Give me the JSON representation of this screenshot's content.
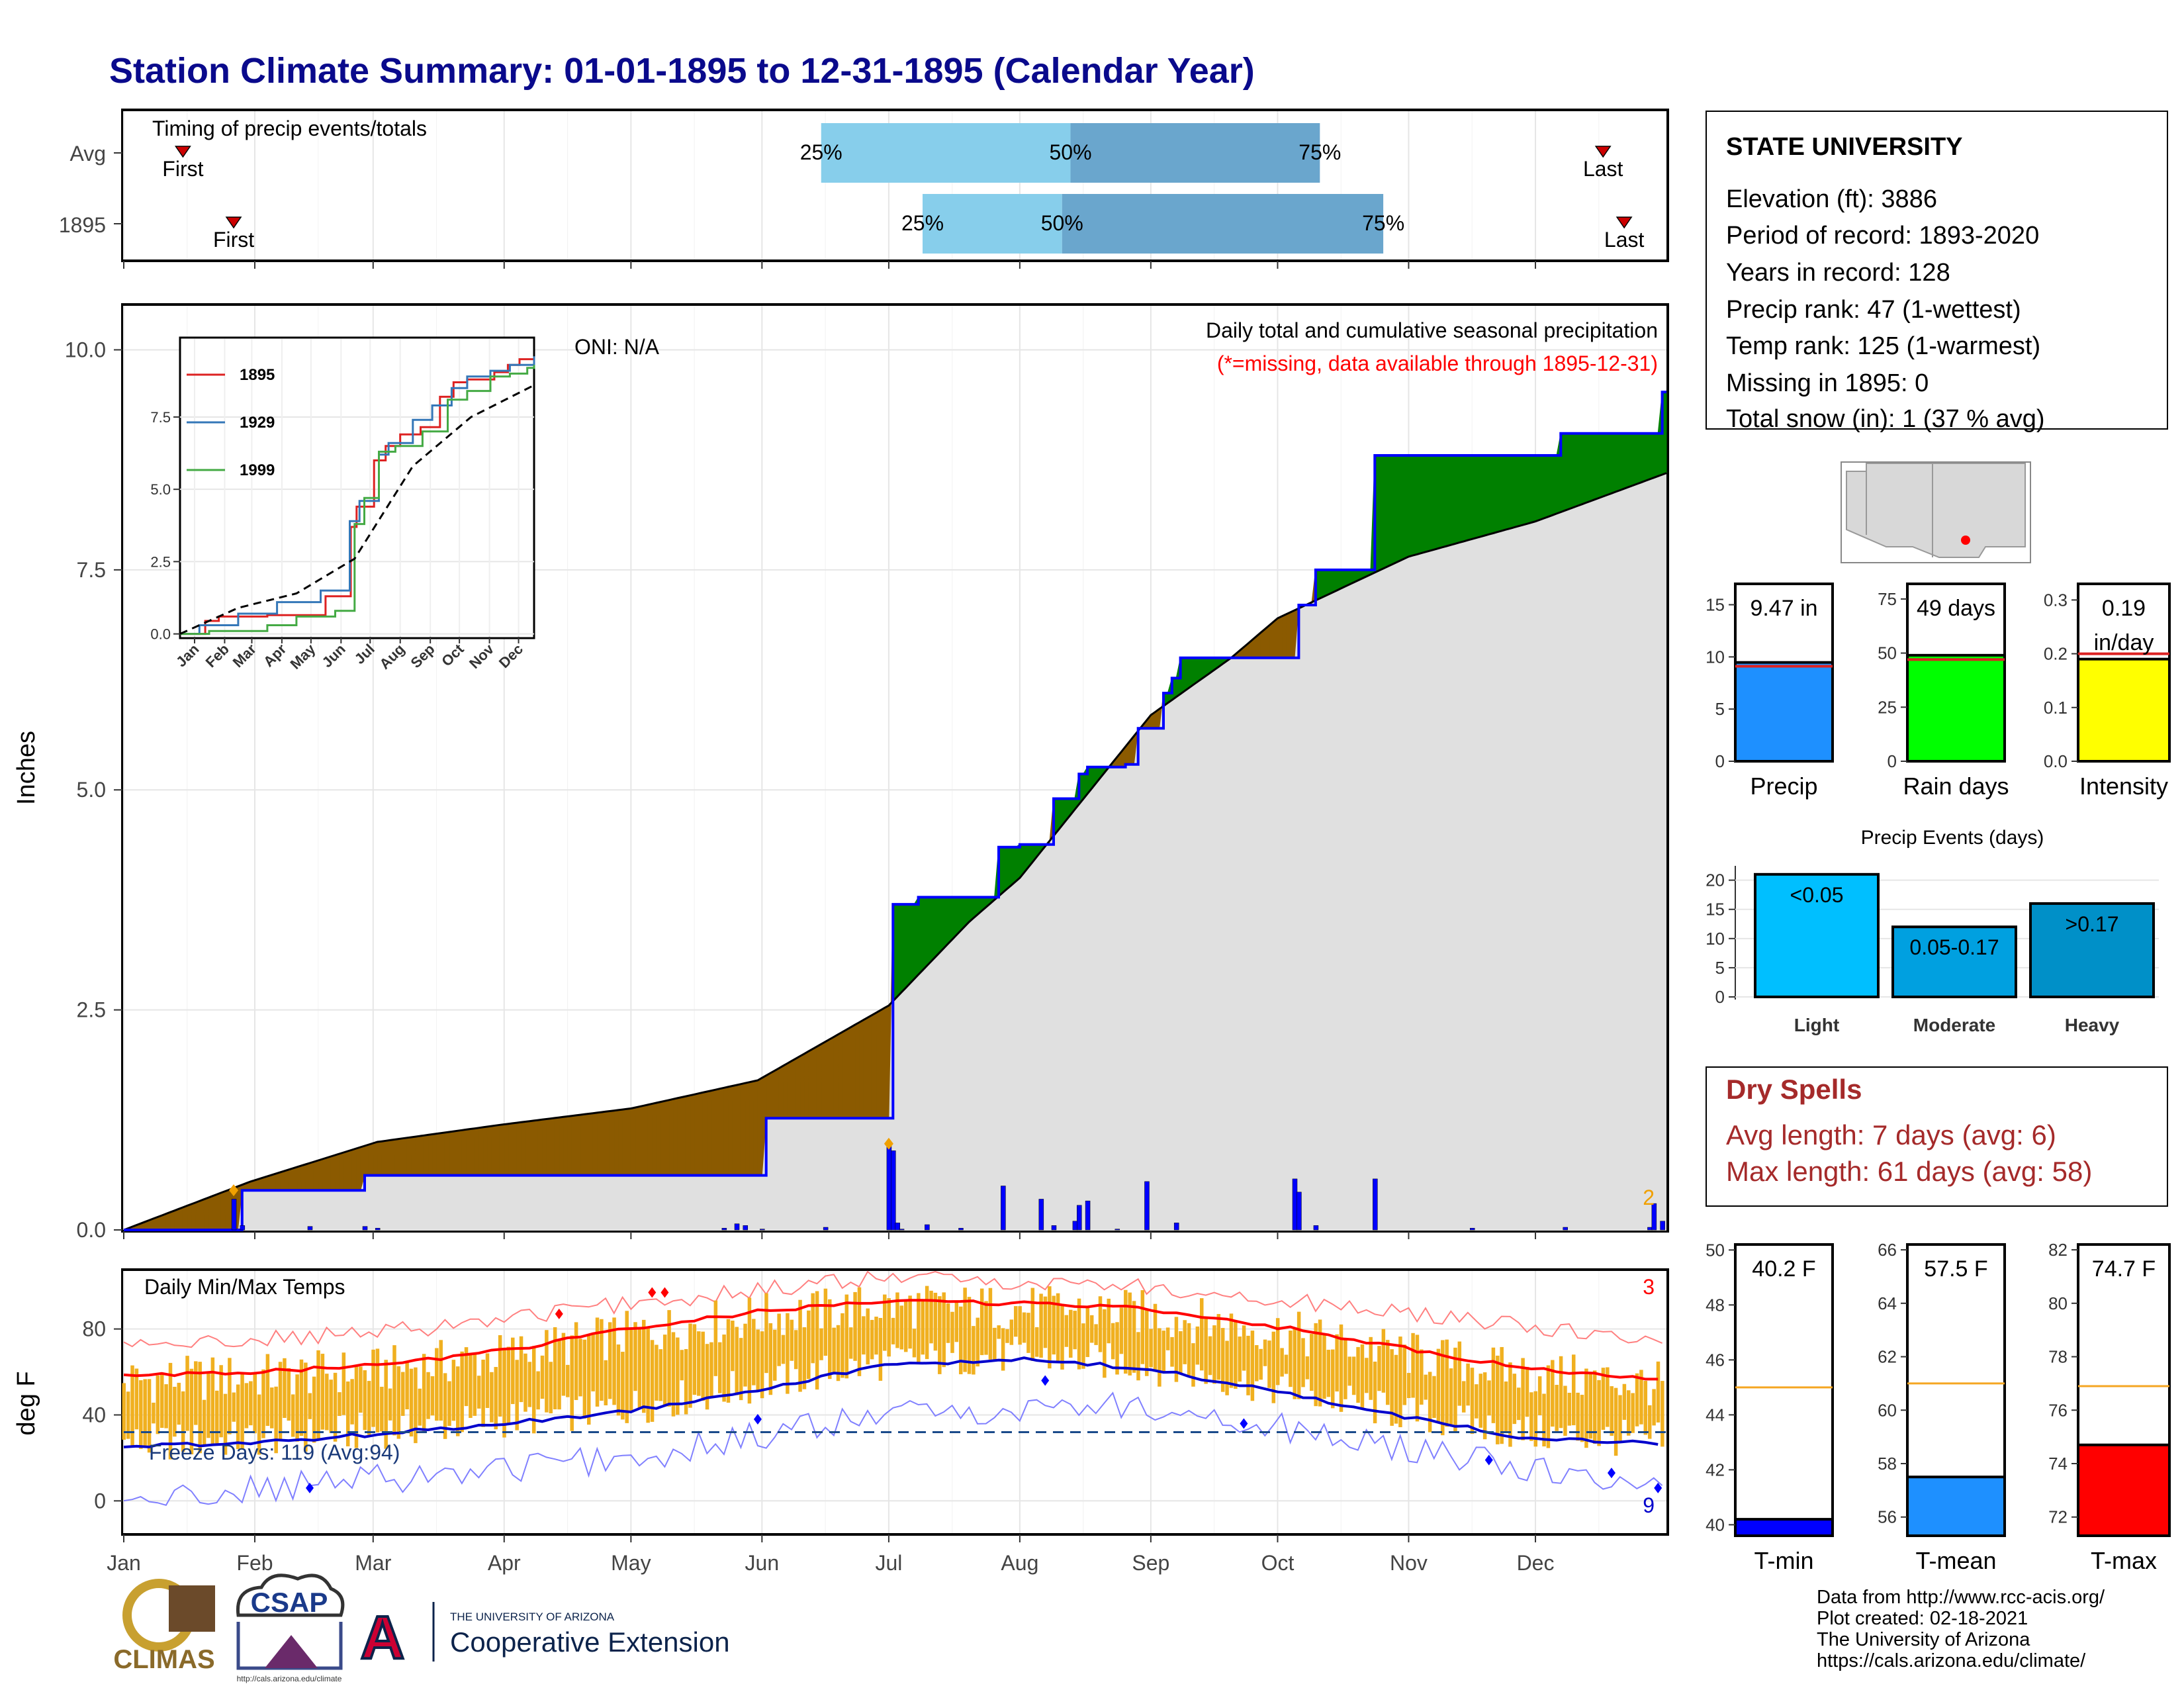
{
  "title": "Station Climate Summary: 01-01-1895 to 12-31-1895 (Calendar Year)",
  "colors": {
    "title": "#0a0a8c",
    "wet": "#008000",
    "dry": "#8B5A00",
    "cum_line": "#0000ff",
    "normal": "#e0e0e0",
    "tmax_line": "#ff0000",
    "tmin_line": "#0000cc",
    "bars": "#f0b020"
  },
  "chart_data": [
    {
      "type": "bar",
      "name": "timing",
      "title": "Timing of precip events/totals",
      "categories": [
        "Avg",
        "1895"
      ],
      "rows": [
        {
          "label": "Avg",
          "first_doy": 14,
          "last_doy": 350,
          "p25_doy": 165,
          "p50_doy": 224,
          "p75_doy": 283,
          "first_label": "First",
          "last_label": "Last",
          "p25_label": "25%",
          "p50_label": "50%",
          "p75_label": "75%"
        },
        {
          "label": "1895",
          "first_doy": 26,
          "last_doy": 355,
          "p25_doy": 189,
          "p50_doy": 222,
          "p75_doy": 298,
          "first_label": "First",
          "last_label": "Last",
          "p25_label": "25%",
          "p50_label": "50%",
          "p75_label": "75%"
        }
      ]
    },
    {
      "type": "area",
      "name": "precip",
      "title": "Daily total and cumulative seasonal precipitation",
      "subtitle": "(*=missing, data available through 1895-12-31)",
      "oni": "ONI: N/A",
      "ylabel": "Inches",
      "ylim": [
        0,
        10.5
      ],
      "yticks": [
        "0.0",
        "2.5",
        "5.0",
        "7.5",
        "10.0"
      ],
      "xticks": [
        "Jan",
        "Feb",
        "Mar",
        "Apr",
        "May",
        "Jun",
        "Jul",
        "Aug",
        "Sep",
        "Oct",
        "Nov",
        "Dec"
      ],
      "corner_count": "2",
      "normal_cumulative": {
        "doy": [
          0,
          30,
          60,
          90,
          120,
          150,
          181,
          200,
          212,
          243,
          262,
          273,
          304,
          334,
          365
        ],
        "in": [
          0,
          0.55,
          1.0,
          1.2,
          1.38,
          1.7,
          2.55,
          3.5,
          4.0,
          5.85,
          6.5,
          6.95,
          7.65,
          8.05,
          8.6
        ]
      },
      "observed_cumulative": {
        "doy": [
          0,
          26,
          28,
          55,
          57,
          150,
          152,
          181,
          182,
          188,
          207,
          212,
          220,
          226,
          228,
          237,
          240,
          246,
          248,
          250,
          255,
          262,
          277,
          278,
          282,
          296,
          340,
          342,
          364,
          365
        ],
        "in": [
          0,
          0,
          0.45,
          0.45,
          0.62,
          0.62,
          1.27,
          1.27,
          3.7,
          3.78,
          4.35,
          4.38,
          4.9,
          5.18,
          5.26,
          5.29,
          5.7,
          6.1,
          6.27,
          6.5,
          6.5,
          6.5,
          6.5,
          7.1,
          7.5,
          8.8,
          9.05,
          9.05,
          9.52,
          9.52
        ]
      },
      "daily_bars": {
        "doy": [
          26,
          28,
          44,
          57,
          60,
          142,
          145,
          147,
          151,
          166,
          181,
          182,
          183,
          184,
          190,
          198,
          208,
          217,
          220,
          225,
          226,
          228,
          235,
          242,
          249,
          277,
          278,
          282,
          296,
          319,
          341,
          361,
          362,
          364
        ],
        "in": [
          0.35,
          0.05,
          0.04,
          0.04,
          0.02,
          0.02,
          0.07,
          0.05,
          0.01,
          0.03,
          0.95,
          0.9,
          0.08,
          0.01,
          0.06,
          0.02,
          0.5,
          0.35,
          0.05,
          0.1,
          0.28,
          0.33,
          0.01,
          0.55,
          0.08,
          0.58,
          0.43,
          0.05,
          0.58,
          0.02,
          0.03,
          0.03,
          0.3,
          0.1
        ]
      },
      "markers": [
        {
          "doy": 26,
          "in": 0.45
        },
        {
          "doy": 181,
          "in": 0.98
        }
      ]
    },
    {
      "type": "line",
      "name": "inset",
      "xticks": [
        "Jan",
        "Feb",
        "Mar",
        "Apr",
        "May",
        "Jun",
        "Jul",
        "Aug",
        "Sep",
        "Oct",
        "Nov",
        "Dec"
      ],
      "yticks": [
        "0.0",
        "2.5",
        "5.0",
        "7.5"
      ],
      "series": [
        {
          "name": "1895",
          "color": "#dd2222",
          "doy": [
            0,
            26,
            40,
            90,
            150,
            176,
            182,
            200,
            212,
            227,
            248,
            268,
            282,
            296,
            324,
            338,
            350,
            365
          ],
          "in": [
            0,
            0.45,
            0.6,
            0.65,
            1.3,
            3.7,
            4.4,
            6.0,
            6.5,
            6.9,
            7.15,
            8.2,
            8.7,
            8.8,
            9.05,
            9.3,
            9.5,
            9.52
          ]
        },
        {
          "name": "1929",
          "color": "#3477b8",
          "doy": [
            0,
            20,
            60,
            100,
            145,
            175,
            185,
            205,
            215,
            240,
            260,
            280,
            296,
            320,
            340,
            365
          ],
          "in": [
            0,
            0.3,
            0.7,
            1.1,
            1.5,
            3.9,
            4.6,
            6.2,
            6.6,
            7.4,
            7.9,
            8.5,
            8.9,
            9.1,
            9.3,
            9.6
          ]
        },
        {
          "name": "1999",
          "color": "#44aa44",
          "doy": [
            0,
            30,
            90,
            120,
            160,
            180,
            190,
            205,
            222,
            250,
            276,
            296,
            320,
            340,
            358,
            365
          ],
          "in": [
            0,
            0.1,
            0.3,
            0.6,
            0.8,
            3.8,
            4.7,
            6.3,
            6.5,
            7.0,
            8.1,
            8.4,
            8.9,
            9.0,
            9.2,
            9.3
          ]
        },
        {
          "name": "",
          "color": "#000000",
          "dashed": true,
          "doy": [
            0,
            60,
            120,
            180,
            240,
            300,
            365
          ],
          "in": [
            0,
            0.9,
            1.4,
            2.6,
            5.8,
            7.5,
            8.6
          ]
        }
      ]
    },
    {
      "type": "bar",
      "name": "temps",
      "title": "Daily Min/Max Temps",
      "ylabel": "deg F",
      "ylim": [
        -15,
        107
      ],
      "yticks": [
        "0",
        "40",
        "80"
      ],
      "xticks": [
        "Jan",
        "Feb",
        "Mar",
        "Apr",
        "May",
        "Jun",
        "Jul",
        "Aug",
        "Sep",
        "Oct",
        "Nov",
        "Dec"
      ],
      "freeze_text": "Freeze Days: 119 (Avg:94)",
      "freeze_line": 32,
      "hot_count": "3",
      "cold_count": "9",
      "tmax_mean": {
        "doy": [
          0,
          30,
          60,
          90,
          120,
          150,
          180,
          210,
          240,
          270,
          300,
          330,
          365
        ],
        "f": [
          58,
          60,
          63,
          70,
          80,
          88,
          93,
          92,
          90,
          82,
          72,
          62,
          56
        ]
      },
      "tmin_mean": {
        "doy": [
          0,
          30,
          60,
          90,
          120,
          150,
          180,
          210,
          240,
          270,
          300,
          330,
          365
        ],
        "f": [
          25,
          27,
          31,
          36,
          42,
          52,
          63,
          66,
          62,
          52,
          40,
          30,
          26
        ]
      },
      "tmax_record": {
        "doy": [
          0,
          60,
          120,
          180,
          240,
          300,
          365
        ],
        "f": [
          72,
          78,
          92,
          104,
          100,
          88,
          74
        ]
      },
      "tmin_record": {
        "doy": [
          0,
          60,
          120,
          180,
          240,
          300,
          365
        ],
        "f": [
          0,
          10,
          20,
          40,
          45,
          25,
          5
        ]
      },
      "markers": [
        {
          "doy": 103,
          "f": 87,
          "color": "#ff0000"
        },
        {
          "doy": 125,
          "f": 97,
          "color": "#ff0000"
        },
        {
          "doy": 128,
          "f": 97,
          "color": "#ff0000"
        },
        {
          "doy": 44,
          "f": 6,
          "color": "#0000ff"
        },
        {
          "doy": 150,
          "f": 38,
          "color": "#0000ff"
        },
        {
          "doy": 218,
          "f": 56,
          "color": "#0000ff"
        },
        {
          "doy": 265,
          "f": 36,
          "color": "#0000ff"
        },
        {
          "doy": 323,
          "f": 19,
          "color": "#0000ff"
        },
        {
          "doy": 352,
          "f": 13,
          "color": "#0000ff"
        },
        {
          "doy": 363,
          "f": 6,
          "color": "#0000ff"
        }
      ]
    },
    {
      "type": "bar",
      "name": "gauge-precip",
      "category": "Precip",
      "value": 9.47,
      "label": "9.47 in",
      "avg": 9.1,
      "ylim": [
        0,
        17
      ],
      "yticks": [
        "0",
        "5",
        "10",
        "15"
      ],
      "color": "#1e90ff"
    },
    {
      "type": "bar",
      "name": "gauge-raindays",
      "category": "Rain days",
      "value": 49,
      "label": "49 days",
      "avg": 47,
      "ylim": [
        0,
        82
      ],
      "yticks": [
        "0",
        "25",
        "50",
        "75"
      ],
      "color": "#00ff00"
    },
    {
      "type": "bar",
      "name": "gauge-intensity",
      "category": "Intensity",
      "value": 0.19,
      "label": "0.19",
      "label2": "in/day",
      "avg": 0.2,
      "ylim": [
        0,
        0.33
      ],
      "yticks": [
        "0.0",
        "0.1",
        "0.2",
        "0.3"
      ],
      "color": "#ffff00"
    },
    {
      "type": "bar",
      "name": "events",
      "title": "Precip Events (days)",
      "categories": [
        "Light",
        "Moderate",
        "Heavy"
      ],
      "values": [
        21,
        12,
        16
      ],
      "bar_labels": [
        "<0.05",
        "0.05-0.17",
        ">0.17"
      ],
      "colors": [
        "#00bfff",
        "#00a0e0",
        "#0090c8"
      ],
      "ylim": [
        0,
        22
      ],
      "yticks": [
        "0",
        "5",
        "10",
        "15",
        "20"
      ]
    },
    {
      "type": "bar",
      "name": "gauge-tmin",
      "category": "T-min",
      "value": 40.2,
      "label": "40.2 F",
      "avg": 45,
      "ylim": [
        39.6,
        50.2
      ],
      "yticks": [
        "40",
        "42",
        "44",
        "46",
        "48",
        "50"
      ],
      "color": "#0000ff"
    },
    {
      "type": "bar",
      "name": "gauge-tmean",
      "category": "T-mean",
      "value": 57.5,
      "label": "57.5 F",
      "avg": 61,
      "ylim": [
        55.3,
        66.2
      ],
      "yticks": [
        "56",
        "58",
        "60",
        "62",
        "64",
        "66"
      ],
      "color": "#1e90ff"
    },
    {
      "type": "bar",
      "name": "gauge-tmax",
      "category": "T-max",
      "value": 74.7,
      "label": "74.7 F",
      "avg": 76.9,
      "ylim": [
        71.3,
        82.2
      ],
      "yticks": [
        "72",
        "74",
        "76",
        "78",
        "80",
        "82"
      ],
      "color": "#ff0000"
    }
  ],
  "station": {
    "name": "STATE UNIVERSITY",
    "lines": [
      "Elevation (ft): 3886",
      "Period of record: 1893-2020",
      "Years in record: 128",
      "Precip rank: 47 (1-wettest)",
      "Temp rank: 125 (1-warmest)",
      "Missing in 1895: 0",
      "Total snow (in): 1 (37 % avg)"
    ]
  },
  "dry_spells": {
    "title": "Dry Spells",
    "avg": "Avg length: 7 days (avg: 6)",
    "max": "Max length: 61 days (avg: 58)"
  },
  "footer": {
    "lines": [
      "Data from http://www.rcc-acis.org/",
      "Plot created: 02-18-2021",
      "The University of Arizona",
      "https://cals.arizona.edu/climate/"
    ]
  },
  "logos": {
    "climas": "CLIMAS",
    "csap": "CSAP",
    "csap_url": "http://cals.arizona.edu/climate",
    "ua_small": "THE UNIVERSITY OF ARIZONA",
    "ua_big": "Cooperative Extension",
    "ua_letter": "A"
  }
}
